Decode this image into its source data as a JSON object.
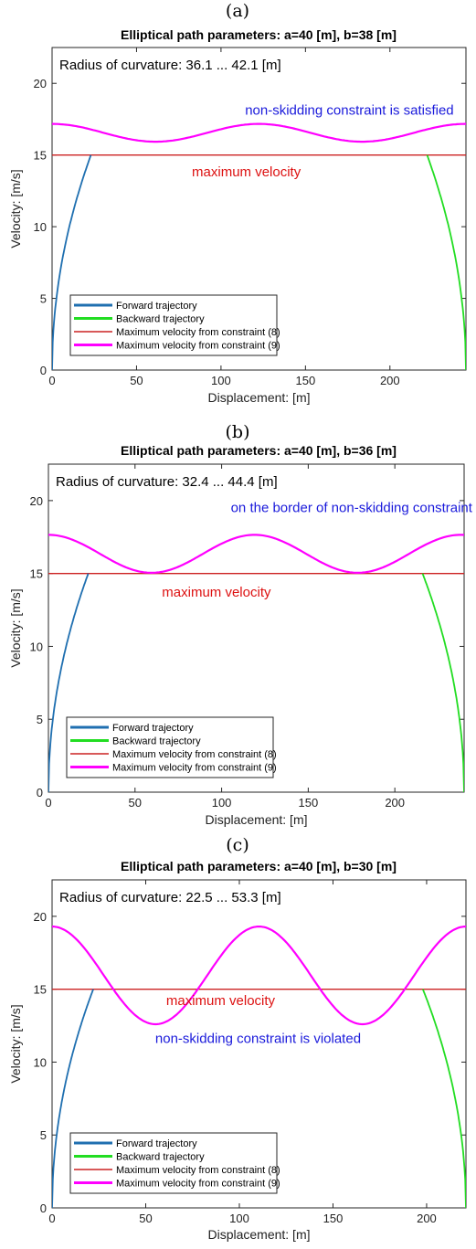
{
  "xlabel": "Displacement: [m]",
  "ylabel": "Velocity: [m/s]",
  "legend": [
    {
      "name": "Forward trajectory",
      "color": "#1f6fb0"
    },
    {
      "name": "Backward trajectory",
      "color": "#22dd22"
    },
    {
      "name": "Maximum velocity from constraint (8)",
      "color": "#cc2222"
    },
    {
      "name": "Maximum velocity from constraint (9)",
      "color": "#ff00ff"
    }
  ],
  "chart_data": [
    {
      "panel": "(a)",
      "type": "line",
      "title": "Elliptical path parameters: a=40 [m], b=38 [m]",
      "radius_text": "Radius of curvature: 36.1 ... 42.1 [m]",
      "annotations": [
        {
          "text": "non-skidding constraint is satisfied",
          "color": "#1a1adb",
          "x": 176,
          "y": 17.8
        },
        {
          "text": "maximum velocity",
          "color": "#dd1111",
          "x": 115,
          "y": 13.5
        }
      ],
      "xlim": [
        0,
        245
      ],
      "ylim": [
        0,
        22.5
      ],
      "xticks": [
        0,
        50,
        100,
        150,
        200
      ],
      "yticks": [
        0,
        5,
        10,
        15,
        20
      ],
      "max_velocity": 15,
      "forward_end_x": 23,
      "backward_start_x": 222,
      "constraint9": {
        "mean": 16.55,
        "amplitude": 0.62,
        "period": 122.4
      }
    },
    {
      "panel": "(b)",
      "type": "line",
      "title": "Elliptical path parameters: a=40 [m], b=36 [m]",
      "radius_text": "Radius of curvature: 32.4 ... 44.4 [m]",
      "annotations": [
        {
          "text": "on the border of non-skidding constraint",
          "color": "#1a1adb",
          "x": 175,
          "y": 19.2
        },
        {
          "text": "maximum velocity",
          "color": "#dd1111",
          "x": 97,
          "y": 13.4
        }
      ],
      "xlim": [
        0,
        240
      ],
      "ylim": [
        0,
        22.5
      ],
      "xticks": [
        0,
        50,
        100,
        150,
        200
      ],
      "yticks": [
        0,
        5,
        10,
        15,
        20
      ],
      "max_velocity": 15,
      "forward_end_x": 23,
      "backward_start_x": 216,
      "constraint9": {
        "mean": 16.35,
        "amplitude": 1.3,
        "period": 119
      }
    },
    {
      "panel": "(c)",
      "type": "line",
      "title": "Elliptical path parameters: a=40 [m], b=30 [m]",
      "radius_text": "Radius of curvature: 22.5 ... 53.3 [m]",
      "annotations": [
        {
          "text": "maximum velocity",
          "color": "#dd1111",
          "x": 90,
          "y": 13.9
        },
        {
          "text": "non-skidding constraint is violated",
          "color": "#1a1adb",
          "x": 110,
          "y": 11.3
        }
      ],
      "xlim": [
        0,
        221
      ],
      "ylim": [
        0,
        22.5
      ],
      "xticks": [
        0,
        50,
        100,
        150,
        200
      ],
      "yticks": [
        0,
        5,
        10,
        15,
        20
      ],
      "max_velocity": 15,
      "forward_end_x": 22,
      "backward_start_x": 198,
      "constraint9": {
        "mean": 15.95,
        "amplitude": 3.35,
        "period": 110.5
      }
    }
  ]
}
